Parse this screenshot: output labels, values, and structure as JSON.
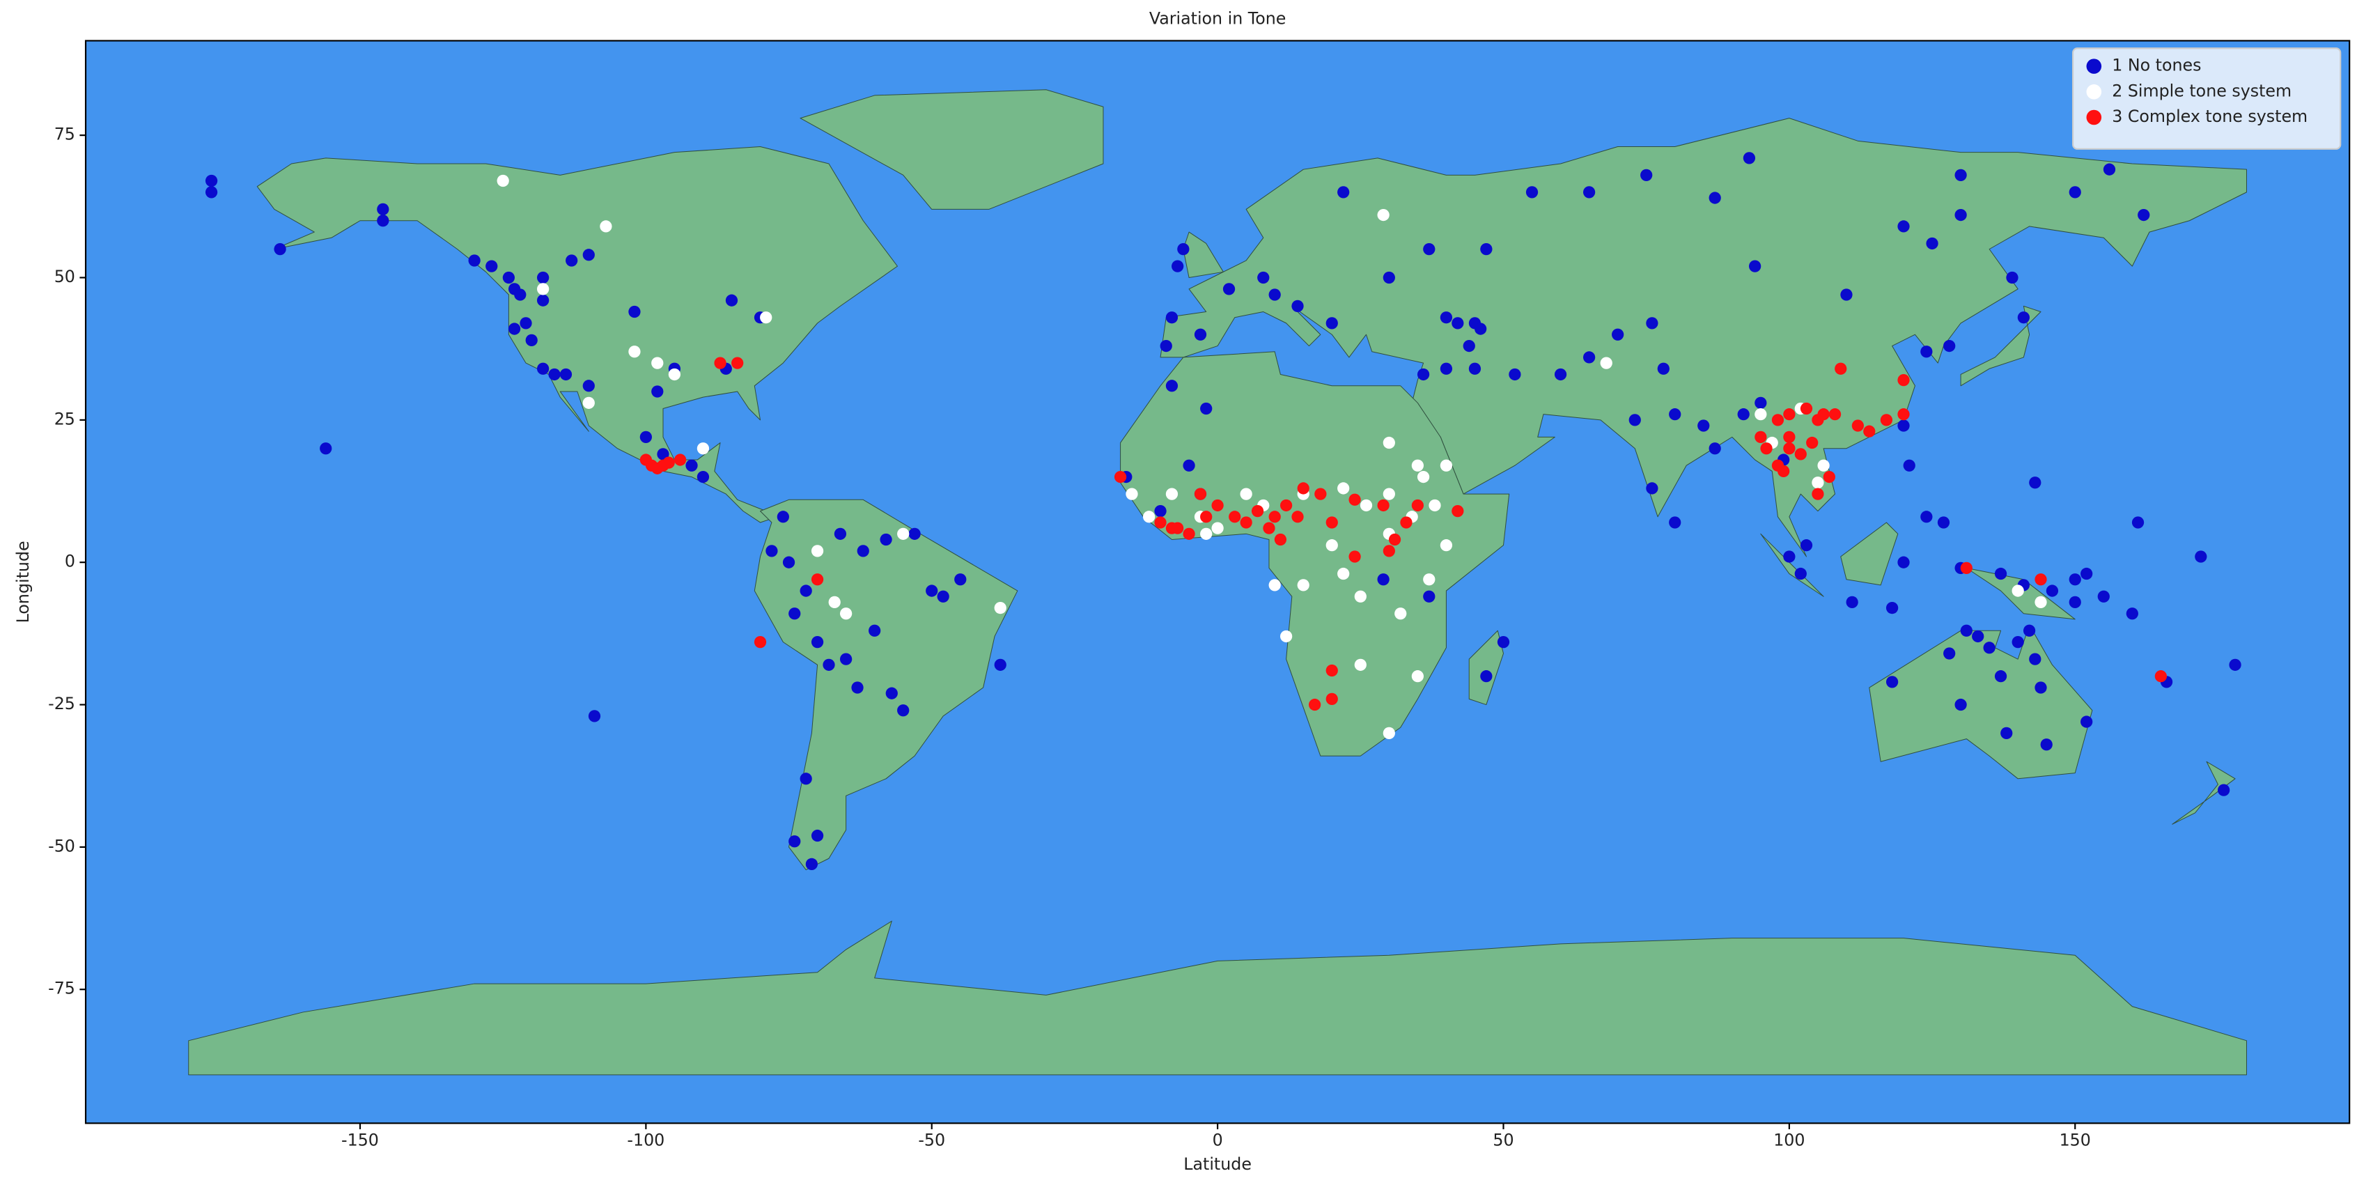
{
  "chart_data": {
    "type": "scatter",
    "title": "Variation in Tone",
    "x_label": "Latitude",
    "y_label": "Longitude",
    "xlim": [
      -198,
      198
    ],
    "ylim": [
      -98.5,
      91.6
    ],
    "xticks": [
      -150,
      -100,
      -50,
      0,
      50,
      100,
      150
    ],
    "yticks": [
      -75,
      -50,
      -25,
      0,
      25,
      50,
      75
    ],
    "legend": "upper right",
    "series": [
      {
        "name": "1 No tones",
        "color": "#0a0acd",
        "x": [
          -176,
          -176,
          -164,
          -146,
          -146,
          -130,
          -127,
          -124,
          -123,
          -122,
          -121,
          -123,
          -120,
          -118,
          -116,
          -114,
          -110,
          -113,
          -118,
          -118,
          -110,
          -102,
          -100,
          -98,
          -95,
          -86,
          -85,
          -80,
          -97,
          -92,
          -90,
          -156,
          -109,
          -76,
          -78,
          -75,
          -72,
          -74,
          -70,
          -68,
          -65,
          -60,
          -57,
          -55,
          -50,
          -48,
          -45,
          -38,
          -66,
          -62,
          -58,
          -53,
          -72,
          -74,
          -70,
          -71,
          -63,
          -9,
          -8,
          -3,
          2,
          8,
          10,
          -6,
          -7,
          14,
          22,
          20,
          30,
          40,
          42,
          45,
          46,
          44,
          37,
          47,
          55,
          65,
          75,
          87,
          93,
          120,
          130,
          130,
          150,
          156,
          162,
          124,
          128,
          141,
          139,
          125,
          110,
          94,
          76,
          70,
          65,
          60,
          52,
          40,
          36,
          45,
          78,
          80,
          85,
          73,
          76,
          80,
          87,
          92,
          95,
          99,
          103,
          100,
          120,
          121,
          124,
          120,
          127,
          102,
          111,
          118,
          130,
          137,
          141,
          146,
          150,
          155,
          160,
          150,
          161,
          143,
          152,
          -16,
          -10,
          -5,
          -3,
          -8,
          -2,
          29,
          37,
          47,
          50,
          118,
          130,
          133,
          135,
          137,
          140,
          142,
          143,
          144,
          145,
          138,
          131,
          128,
          152,
          176,
          178,
          172,
          166
        ],
        "y": [
          67,
          65,
          55,
          62,
          60,
          53,
          52,
          50,
          48,
          47,
          42,
          41,
          39,
          34,
          33,
          33,
          31,
          53,
          50,
          46,
          54,
          44,
          22,
          30,
          34,
          34,
          46,
          43,
          19,
          17,
          15,
          20,
          -27,
          8,
          2,
          0,
          -5,
          -9,
          -14,
          -18,
          -17,
          -12,
          -23,
          -26,
          -5,
          -6,
          -3,
          -18,
          5,
          2,
          4,
          5,
          -38,
          -49,
          -48,
          -53,
          -22,
          38,
          43,
          40,
          48,
          50,
          47,
          55,
          52,
          45,
          65,
          42,
          50,
          43,
          42,
          42,
          41,
          38,
          55,
          55,
          65,
          65,
          68,
          64,
          71,
          59,
          68,
          61,
          65,
          69,
          61,
          37,
          38,
          43,
          50,
          56,
          47,
          52,
          42,
          40,
          36,
          33,
          33,
          34,
          33,
          34,
          34,
          26,
          24,
          25,
          13,
          7,
          20,
          26,
          28,
          18,
          3,
          1,
          24,
          17,
          8,
          0,
          7,
          -2,
          -7,
          -8,
          -1,
          -2,
          -4,
          -5,
          -7,
          -6,
          -9,
          -3,
          7,
          14,
          -2,
          15,
          9,
          17,
          12,
          31,
          27,
          -3,
          -6,
          -20,
          -14,
          -21,
          -25,
          -13,
          -15,
          -20,
          -14,
          -12,
          -17,
          -22,
          -32,
          -30,
          -12,
          -16,
          -28,
          -40,
          -18,
          1,
          -21
        ]
      },
      {
        "name": "2 Simple tone system",
        "color": "#ffffff",
        "x": [
          -125,
          -107,
          -102,
          -98,
          -95,
          -90,
          -110,
          -79,
          -118,
          -67,
          -38,
          -65,
          -55,
          -70,
          30,
          35,
          25,
          22,
          15,
          20,
          30,
          34,
          40,
          37,
          32,
          10,
          12,
          25,
          -3,
          0,
          5,
          8,
          15,
          22,
          26,
          30,
          36,
          40,
          -8,
          -12,
          102,
          95,
          97,
          106,
          144,
          140,
          105,
          68,
          29,
          -2,
          -15,
          30,
          35,
          38
        ],
        "y": [
          67,
          59,
          37,
          35,
          33,
          20,
          28,
          43,
          48,
          -7,
          -8,
          -9,
          5,
          2,
          -30,
          -20,
          -6,
          -2,
          -4,
          3,
          5,
          8,
          3,
          -3,
          -9,
          -4,
          -13,
          -18,
          8,
          6,
          12,
          10,
          12,
          13,
          10,
          12,
          15,
          17,
          12,
          8,
          27,
          26,
          21,
          17,
          -7,
          -5,
          14,
          35,
          61,
          5,
          12,
          21,
          17,
          10
        ]
      },
      {
        "name": "3 Complex tone system",
        "color": "#ff1010",
        "x": [
          -97,
          -96,
          -98,
          -94,
          -99,
          -100,
          -84,
          -87,
          -80,
          -70,
          -17,
          -10,
          -8,
          -5,
          -2,
          -7,
          -3,
          0,
          3,
          5,
          7,
          9,
          10,
          11,
          12,
          14,
          15,
          18,
          20,
          24,
          29,
          33,
          31,
          35,
          42,
          24,
          30,
          17,
          20,
          20,
          95,
          96,
          98,
          98,
          100,
          100,
          103,
          105,
          104,
          106,
          108,
          109,
          112,
          114,
          117,
          120,
          105,
          107,
          120,
          144,
          131,
          165,
          100,
          99,
          102
        ],
        "y": [
          17,
          17.5,
          16.5,
          18,
          17,
          18,
          35,
          35,
          -14,
          -3,
          15,
          7,
          6,
          5,
          8,
          6,
          12,
          10,
          8,
          7,
          9,
          6,
          8,
          4,
          10,
          8,
          13,
          12,
          7,
          11,
          10,
          7,
          4,
          10,
          9,
          1,
          2,
          -25,
          -19,
          -24,
          22,
          20,
          25,
          17,
          26,
          22,
          27,
          25,
          21,
          26,
          26,
          34,
          24,
          23,
          25,
          26,
          12,
          15,
          32,
          -3,
          -1,
          -20,
          20,
          16,
          19
        ]
      }
    ]
  }
}
